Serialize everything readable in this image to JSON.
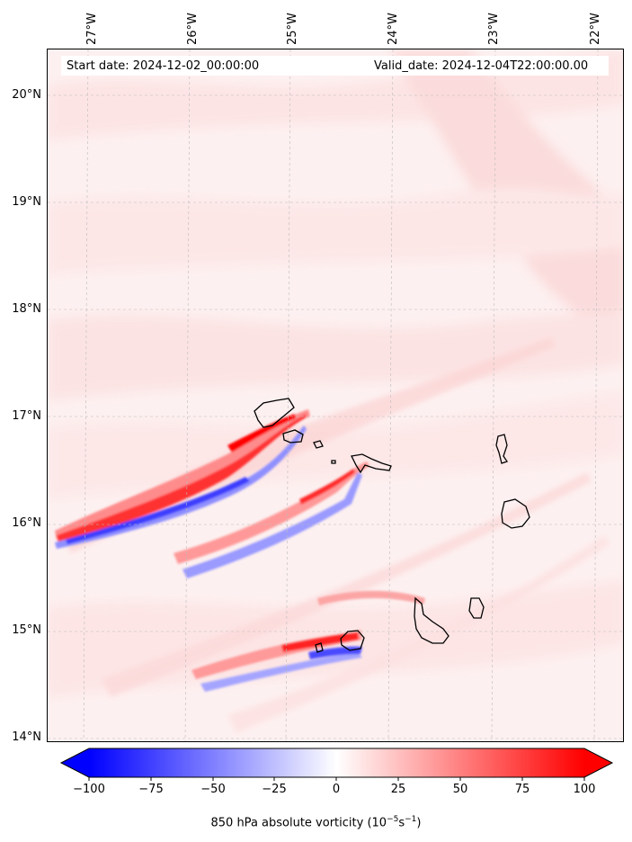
{
  "map": {
    "start_date": "Start date: 2024-12-02_00:00:00",
    "valid_date": "Valid_date: 2024-12-04T22:00:00.00",
    "lon_labels": [
      "27°W",
      "26°W",
      "25°W",
      "24°W",
      "23°W",
      "22°W"
    ],
    "lat_labels": [
      "20°N",
      "19°N",
      "18°N",
      "17°N",
      "16°N",
      "15°N",
      "14°N"
    ],
    "colorbar": {
      "ticks": [
        "−100",
        "−75",
        "−50",
        "−25",
        "0",
        "25",
        "50",
        "75",
        "100"
      ],
      "label": "850 hPa absolute vorticity (10",
      "label_exp1": "−5",
      "label_mid": "s",
      "label_exp2": "−1",
      "label_end": ")",
      "cmap": [
        "#0000ff",
        "#ffffff",
        "#ff0000"
      ],
      "range": [
        -100,
        100
      ],
      "extend": "both"
    },
    "colors": {
      "background_tint": "#fde8e8",
      "coast": "#000000",
      "grid": "#bbbbbb"
    }
  }
}
